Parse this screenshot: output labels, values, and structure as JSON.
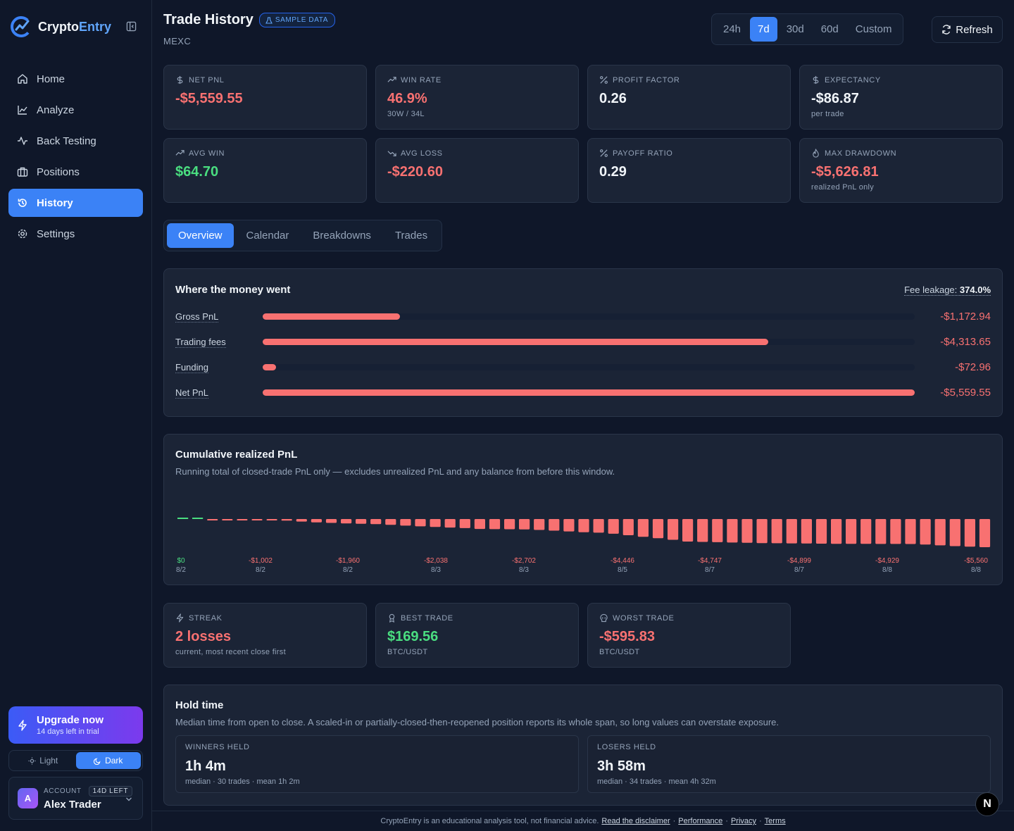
{
  "app": {
    "name_part1": "Crypto",
    "name_part2": "Entry"
  },
  "sidebar": {
    "items": [
      {
        "label": "Home",
        "icon": "home-icon"
      },
      {
        "label": "Analyze",
        "icon": "chart-line-icon"
      },
      {
        "label": "Back Testing",
        "icon": "activity-icon"
      },
      {
        "label": "Positions",
        "icon": "briefcase-icon"
      },
      {
        "label": "History",
        "icon": "history-icon",
        "active": true
      },
      {
        "label": "Settings",
        "icon": "gear-icon"
      }
    ],
    "upgrade": {
      "title": "Upgrade now",
      "subtitle": "14 days left in trial"
    },
    "theme": {
      "light": "Light",
      "dark": "Dark",
      "selected": "Dark"
    },
    "account": {
      "label": "ACCOUNT",
      "badge": "14D LEFT",
      "name": "Alex Trader",
      "initial": "A"
    }
  },
  "header": {
    "title": "Trade History",
    "badge": "SAMPLE DATA",
    "exchange": "MEXC",
    "ranges": [
      "24h",
      "7d",
      "30d",
      "60d",
      "Custom"
    ],
    "selected_range": "7d",
    "refresh_label": "Refresh"
  },
  "kpis": [
    {
      "label": "NET PNL",
      "value": "-$5,559.55",
      "sub": "",
      "tone": "neg",
      "icon": "dollar-icon"
    },
    {
      "label": "WIN RATE",
      "value": "46.9%",
      "sub": "30W / 34L",
      "tone": "neg",
      "icon": "trend-up-icon"
    },
    {
      "label": "PROFIT FACTOR",
      "value": "0.26",
      "sub": "",
      "tone": "neu",
      "icon": "percent-icon"
    },
    {
      "label": "EXPECTANCY",
      "value": "-$86.87",
      "sub": "per trade",
      "tone": "neu",
      "icon": "dollar-icon"
    },
    {
      "label": "AVG WIN",
      "value": "$64.70",
      "sub": "",
      "tone": "pos",
      "icon": "trend-up-icon"
    },
    {
      "label": "AVG LOSS",
      "value": "-$220.60",
      "sub": "",
      "tone": "neg",
      "icon": "trend-down-icon"
    },
    {
      "label": "PAYOFF RATIO",
      "value": "0.29",
      "sub": "",
      "tone": "neu",
      "icon": "percent-icon"
    },
    {
      "label": "MAX DRAWDOWN",
      "value": "-$5,626.81",
      "sub": "realized PnL only",
      "tone": "neg",
      "icon": "flame-icon"
    }
  ],
  "tabs": [
    "Overview",
    "Calendar",
    "Breakdowns",
    "Trades"
  ],
  "selected_tab": "Overview",
  "money": {
    "title": "Where the money went",
    "fee_leak_label": "Fee leakage:",
    "fee_leak_value": "374.0%",
    "rows": [
      {
        "label": "Gross PnL",
        "value": "-$1,172.94",
        "amount": -1172.94
      },
      {
        "label": "Trading fees",
        "value": "-$4,313.65",
        "amount": -4313.65
      },
      {
        "label": "Funding",
        "value": "-$72.96",
        "amount": -72.96
      },
      {
        "label": "Net PnL",
        "value": "-$5,559.55",
        "amount": -5559.55
      }
    ]
  },
  "cumulative": {
    "title": "Cumulative realized PnL",
    "desc": "Running total of closed-trade PnL only — excludes unrealized PnL and any balance from before this window.",
    "tick_labels": [
      {
        "value": "$0",
        "date": "8/2",
        "tone": "pos"
      },
      {
        "value": "-$1,002",
        "date": "8/2",
        "tone": "neg"
      },
      {
        "value": "-$1,960",
        "date": "8/2",
        "tone": "neg"
      },
      {
        "value": "-$2,038",
        "date": "8/3",
        "tone": "neg"
      },
      {
        "value": "-$2,702",
        "date": "8/3",
        "tone": "neg"
      },
      {
        "value": "-$4,446",
        "date": "8/5",
        "tone": "neg"
      },
      {
        "value": "-$4,747",
        "date": "8/7",
        "tone": "neg"
      },
      {
        "value": "-$4,899",
        "date": "8/7",
        "tone": "neg"
      },
      {
        "value": "-$4,929",
        "date": "8/8",
        "tone": "neg"
      },
      {
        "value": "-$5,560",
        "date": "8/8",
        "tone": "neg"
      }
    ]
  },
  "chart_data": {
    "type": "bar",
    "title": "Cumulative realized PnL",
    "values": [
      20,
      15,
      -5,
      -10,
      -20,
      -60,
      -180,
      -320,
      -500,
      -650,
      -760,
      -860,
      -940,
      -1002,
      -1150,
      -1300,
      -1450,
      -1560,
      -1680,
      -1800,
      -1960,
      -2000,
      -2020,
      -2038,
      -2150,
      -2300,
      -2450,
      -2600,
      -2702,
      -2900,
      -3200,
      -3500,
      -3800,
      -4100,
      -4446,
      -4520,
      -4580,
      -4640,
      -4700,
      -4747,
      -4780,
      -4810,
      -4840,
      -4870,
      -4899,
      -4905,
      -4912,
      -4918,
      -4924,
      -4929,
      -5050,
      -5200,
      -5350,
      -5450,
      -5560
    ]
  },
  "stats": [
    {
      "label": "STREAK",
      "value": "2 losses",
      "sub": "current, most recent close first",
      "tone": "neg",
      "icon": "bolt-icon"
    },
    {
      "label": "BEST TRADE",
      "value": "$169.56",
      "sub": "BTC/USDT",
      "tone": "pos",
      "icon": "award-icon"
    },
    {
      "label": "WORST TRADE",
      "value": "-$595.83",
      "sub": "BTC/USDT",
      "tone": "neg",
      "icon": "skull-icon"
    }
  ],
  "hold": {
    "title": "Hold time",
    "desc": "Median time from open to close. A scaled-in or partially-closed-then-reopened position reports its whole span, so long values can overstate exposure.",
    "winners": {
      "label": "WINNERS HELD",
      "value": "1h 4m",
      "sub": "median · 30 trades · mean 1h 2m"
    },
    "losers": {
      "label": "LOSERS HELD",
      "value": "3h 58m",
      "sub": "median · 34 trades · mean 4h 32m"
    }
  },
  "footer": {
    "text": "CryptoEntry is an educational analysis tool, not financial advice.",
    "links": [
      "Read the disclaimer",
      "Performance",
      "Privacy",
      "Terms"
    ],
    "sep": "·"
  },
  "n_badge": "N",
  "colors": {
    "accent": "#3b82f6",
    "negative": "#f87171",
    "positive": "#4ade80"
  }
}
